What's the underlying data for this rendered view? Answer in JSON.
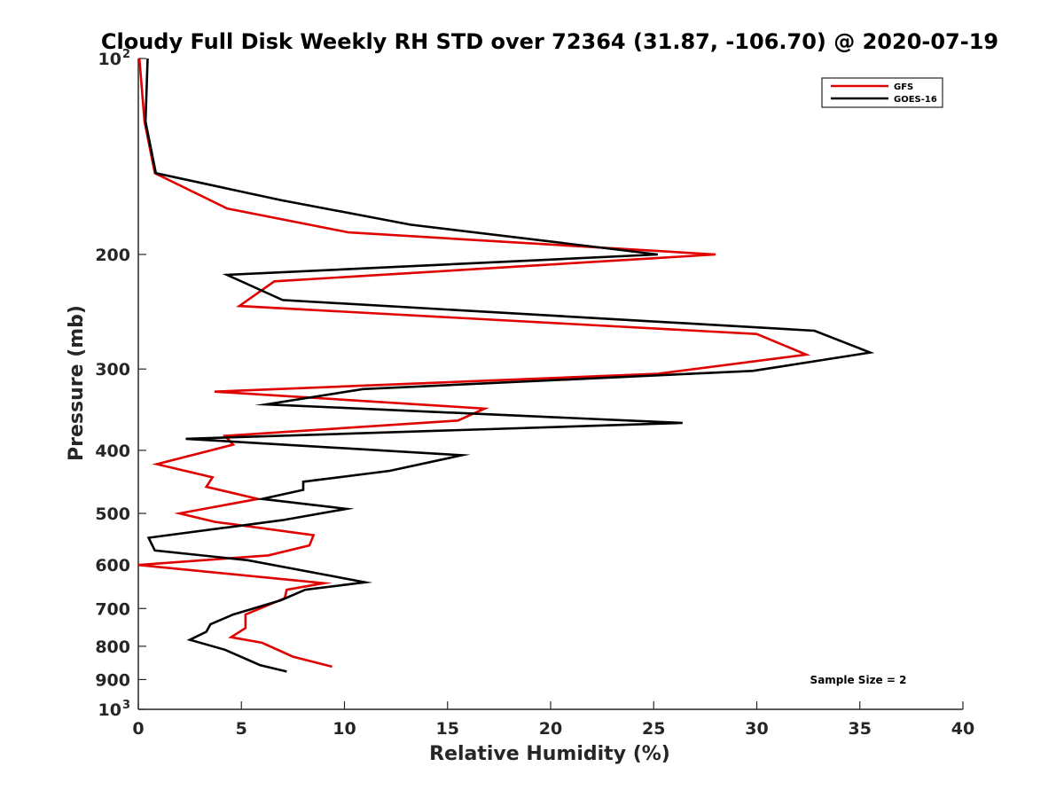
{
  "chart_data": {
    "type": "line",
    "title": "Cloudy Full Disk Weekly RH STD over 72364 (31.87, -106.70) @ 2020-07-19",
    "xlabel": "Relative Humidity (%)",
    "ylabel": "Pressure (mb)",
    "xlim": [
      0,
      40
    ],
    "ylim": [
      100,
      1000
    ],
    "y_scale": "log",
    "y_reversed": true,
    "grid": false,
    "legend_position": "top-right",
    "x_ticks": [
      "0",
      "5",
      "10",
      "15",
      "20",
      "25",
      "30",
      "35",
      "40"
    ],
    "y_ticks": [
      {
        "value": 100,
        "label": "10",
        "sup": "2"
      },
      {
        "value": 200,
        "label": "200",
        "sup": ""
      },
      {
        "value": 300,
        "label": "300",
        "sup": ""
      },
      {
        "value": 400,
        "label": "400",
        "sup": ""
      },
      {
        "value": 500,
        "label": "500",
        "sup": ""
      },
      {
        "value": 600,
        "label": "600",
        "sup": ""
      },
      {
        "value": 700,
        "label": "700",
        "sup": ""
      },
      {
        "value": 800,
        "label": "800",
        "sup": ""
      },
      {
        "value": 900,
        "label": "900",
        "sup": ""
      },
      {
        "value": 1000,
        "label": "10",
        "sup": "3"
      }
    ],
    "series": [
      {
        "name": "GFS",
        "color": "#e00000",
        "points": [
          [
            0.05,
            100
          ],
          [
            0.3,
            125
          ],
          [
            0.8,
            150
          ],
          [
            4.3,
            170
          ],
          [
            10.2,
            185
          ],
          [
            28.0,
            200
          ],
          [
            6.6,
            220
          ],
          [
            4.9,
            240
          ],
          [
            30.0,
            265
          ],
          [
            32.4,
            285
          ],
          [
            25.2,
            305
          ],
          [
            3.7,
            325
          ],
          [
            16.8,
            345
          ],
          [
            15.5,
            360
          ],
          [
            4.2,
            380
          ],
          [
            4.6,
            392
          ],
          [
            0.9,
            420
          ],
          [
            3.6,
            440
          ],
          [
            3.3,
            455
          ],
          [
            5.8,
            475
          ],
          [
            2.0,
            500
          ],
          [
            3.7,
            515
          ],
          [
            8.5,
            540
          ],
          [
            8.3,
            560
          ],
          [
            6.3,
            580
          ],
          [
            0.0,
            600
          ],
          [
            9.0,
            640
          ],
          [
            7.2,
            655
          ],
          [
            7.1,
            675
          ],
          [
            5.2,
            715
          ],
          [
            5.2,
            750
          ],
          [
            4.5,
            775
          ],
          [
            6.0,
            790
          ],
          [
            7.5,
            830
          ],
          [
            9.4,
            860
          ]
        ]
      },
      {
        "name": "GOES-16",
        "color": "#000000",
        "points": [
          [
            0.45,
            100
          ],
          [
            0.35,
            125
          ],
          [
            0.85,
            150
          ],
          [
            6.9,
            165
          ],
          [
            13.2,
            180
          ],
          [
            25.2,
            200
          ],
          [
            4.3,
            215
          ],
          [
            7.0,
            235
          ],
          [
            32.8,
            262
          ],
          [
            35.5,
            283
          ],
          [
            29.8,
            302
          ],
          [
            10.9,
            322
          ],
          [
            6.2,
            340
          ],
          [
            26.4,
            363
          ],
          [
            2.3,
            384
          ],
          [
            15.7,
            407
          ],
          [
            12.2,
            430
          ],
          [
            8.0,
            447
          ],
          [
            8.0,
            460
          ],
          [
            6.0,
            475
          ],
          [
            10.1,
            492
          ],
          [
            7.0,
            512
          ],
          [
            0.5,
            545
          ],
          [
            0.8,
            570
          ],
          [
            5.3,
            590
          ],
          [
            11.0,
            638
          ],
          [
            8.1,
            655
          ],
          [
            6.9,
            680
          ],
          [
            4.6,
            715
          ],
          [
            3.5,
            740
          ],
          [
            3.3,
            760
          ],
          [
            2.5,
            782
          ],
          [
            4.2,
            810
          ],
          [
            5.9,
            855
          ],
          [
            7.2,
            875
          ]
        ]
      }
    ],
    "annotation": "Sample Size = 2"
  }
}
